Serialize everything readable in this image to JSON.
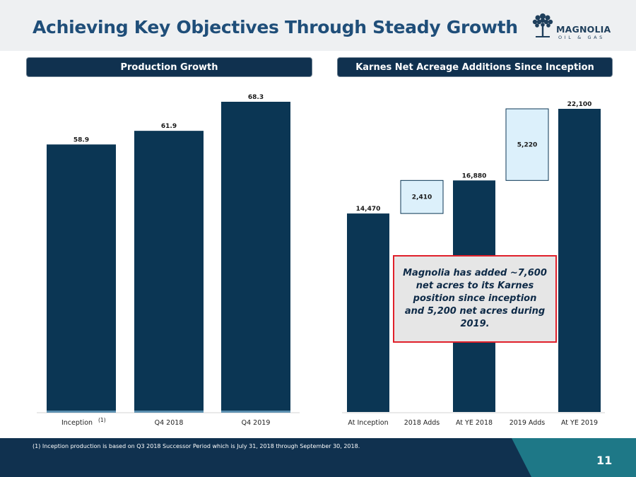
{
  "slide": {
    "title": "Achieving Key Objectives Through Steady Growth",
    "page_number": "11",
    "footnote": "(1)  Inception production is based on Q3 2018 Successor Period which is July 31, 2018 through September 30, 2018."
  },
  "logo": {
    "name": "MAGNOLIA",
    "sub": "OIL & GAS",
    "icon": "magnolia-tree-icon"
  },
  "panels": {
    "left_header": "Production Growth",
    "right_header": "Karnes Net Acreage Additions Since Inception"
  },
  "callout": {
    "text": "Magnolia has added ~7,600 net acres to its Karnes position since inception and 5,200 net acres during 2019."
  },
  "colors": {
    "bar": "#0b3654",
    "increment": "#dcf0fb",
    "title": "#1f4e79",
    "footer": "#10314f",
    "accent": "#1e7887",
    "callout_border": "#e0202a"
  },
  "chart_data": [
    {
      "type": "bar",
      "title": "Production Growth",
      "categories": [
        "Inception",
        "Q4 2018",
        "Q4 2019"
      ],
      "category_superscripts": [
        "(1)",
        "",
        ""
      ],
      "values": [
        58.9,
        61.9,
        68.3
      ],
      "value_labels": [
        "58.9",
        "61.9",
        "68.3"
      ],
      "ylim": [
        0,
        68.3
      ],
      "xlabel": "",
      "ylabel": ""
    },
    {
      "type": "bar",
      "subtype": "waterfall",
      "title": "Karnes Net Acreage Additions Since Inception",
      "categories": [
        "At Inception",
        "2018 Adds",
        "At YE 2018",
        "2019 Adds",
        "At YE 2019"
      ],
      "values": [
        14470,
        2410,
        16880,
        5220,
        22100
      ],
      "value_labels": [
        "14,470",
        "2,410",
        "16,880",
        "5,220",
        "22,100"
      ],
      "kinds": [
        "total",
        "increment",
        "total",
        "increment",
        "total"
      ],
      "ylim": [
        0,
        22100
      ],
      "xlabel": "",
      "ylabel": ""
    }
  ]
}
